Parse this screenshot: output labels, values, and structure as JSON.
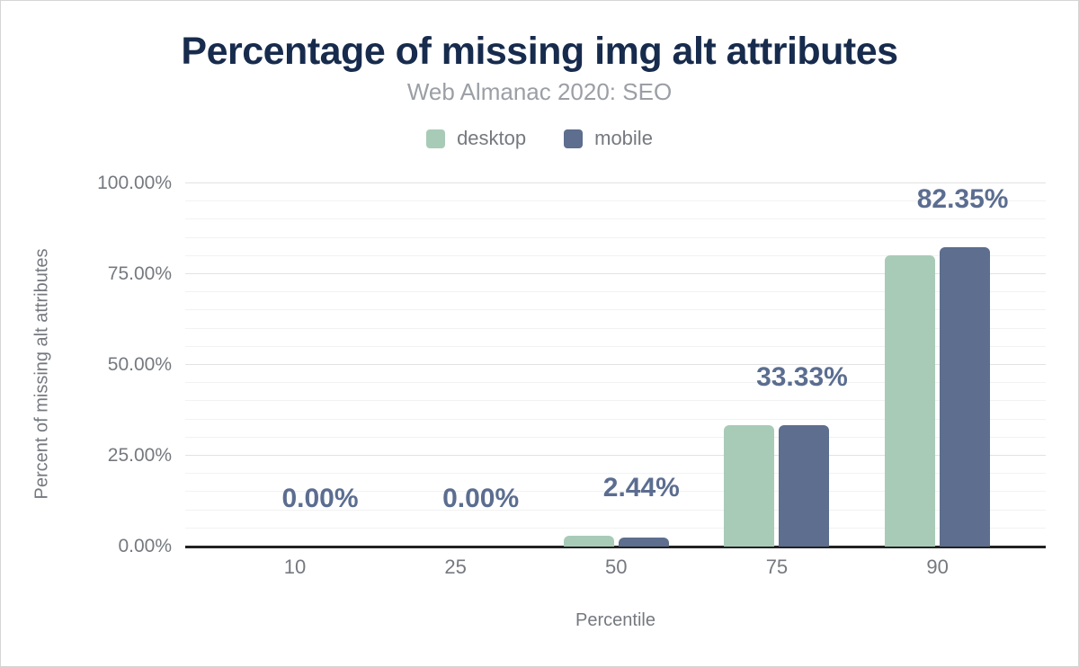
{
  "header": {
    "title": "Percentage of missing img alt attributes",
    "subtitle": "Web Almanac 2020: SEO"
  },
  "chart_data": {
    "type": "bar",
    "title": "Percentage of missing img alt attributes",
    "subtitle": "Web Almanac 2020: SEO",
    "categories": [
      "10",
      "25",
      "50",
      "75",
      "90"
    ],
    "series": [
      {
        "name": "desktop",
        "color": "#a8cbb7",
        "values": [
          0,
          0,
          3.0,
          33.33,
          80.2
        ]
      },
      {
        "name": "mobile",
        "color": "#5d6e8e",
        "values": [
          0,
          0,
          2.44,
          33.33,
          82.35
        ]
      }
    ],
    "data_labels": [
      "0.00%",
      "0.00%",
      "2.44%",
      "33.33%",
      "82.35%"
    ],
    "data_labels_follow_series": "mobile",
    "xlabel": "Percentile",
    "ylabel": "Percent of missing alt attributes",
    "ylim": [
      0,
      100
    ],
    "yticks": [
      {
        "value": 0,
        "label": "0.00%"
      },
      {
        "value": 25,
        "label": "25.00%"
      },
      {
        "value": 50,
        "label": "50.00%"
      },
      {
        "value": 75,
        "label": "75.00%"
      },
      {
        "value": 100,
        "label": "100.00%"
      }
    ],
    "grid": {
      "minor_step": 5,
      "major_step": 25,
      "minor_color": "#f2f2f2",
      "major_color": "#e2e2e2"
    },
    "legend_position": "top",
    "colors": {
      "title": "#172b4d",
      "subtitle": "#9b9fa5",
      "axis_text": "#75797f",
      "data_label": "#5b6d90",
      "axis_line": "#222222"
    }
  }
}
